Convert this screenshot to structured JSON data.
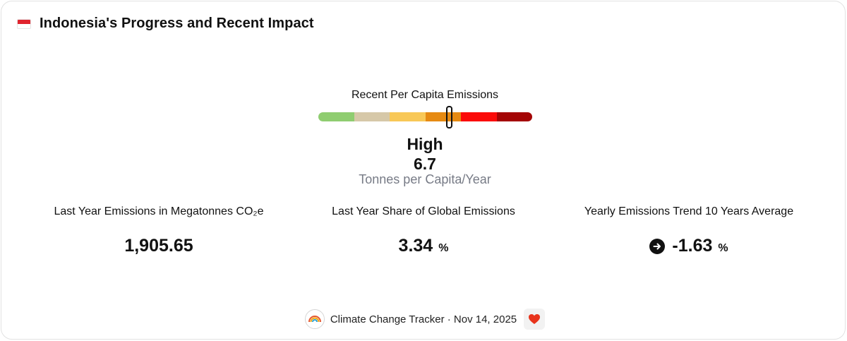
{
  "header": {
    "flag_icon": "indonesia-flag-icon",
    "title": "Indonesia's Progress and Recent Impact"
  },
  "gauge": {
    "label": "Recent Per Capita Emissions",
    "segment_colors": [
      "#8fcd70",
      "#d6c8a8",
      "#f8c857",
      "#e68a12",
      "#fb0b09",
      "#a40505"
    ],
    "marker_fraction": 0.61,
    "level": "High",
    "value": "6.7",
    "units": "Tonnes per Capita/Year"
  },
  "stats": [
    {
      "label": "Last Year Emissions in Megatonnes CO₂e",
      "value": "1,905.65",
      "unit": ""
    },
    {
      "label": "Last Year Share of Global Emissions",
      "value": "3.34",
      "unit": "%"
    },
    {
      "label": "Yearly Emissions Trend 10 Years Average",
      "value": "-1.63",
      "unit": "%",
      "icon": "arrow-right-icon"
    }
  ],
  "footer": {
    "logo_icon": "rainbow-logo-icon",
    "text": "Climate Change Tracker · Nov 14, 2025",
    "heart_icon": "heart-icon"
  }
}
